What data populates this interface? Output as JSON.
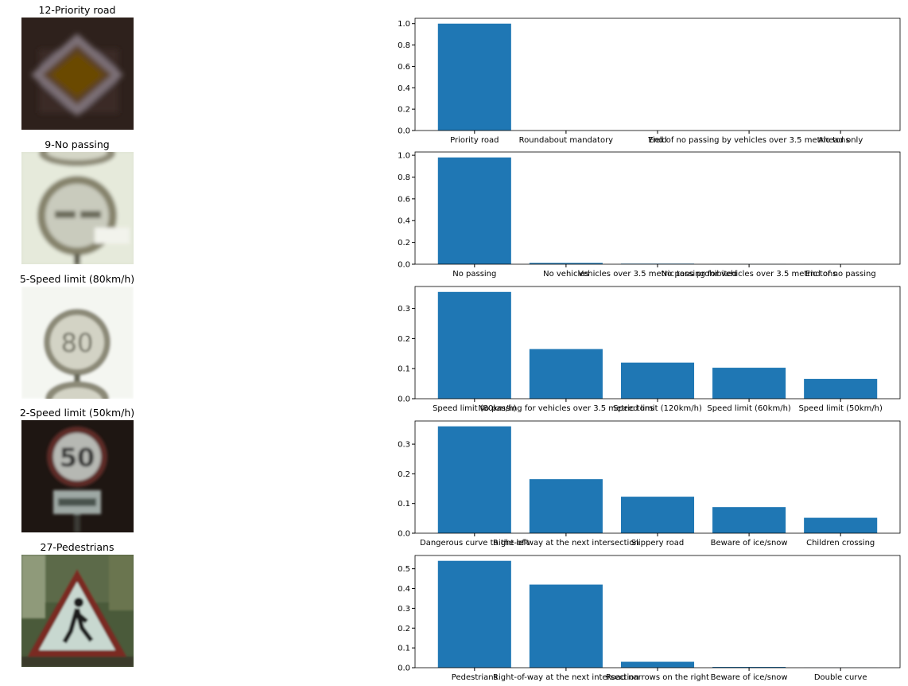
{
  "panels": [
    {
      "image_title": "12-Priority road",
      "sign_icon": "priority-road-sign-icon"
    },
    {
      "image_title": "9-No passing",
      "sign_icon": "no-passing-sign-icon"
    },
    {
      "image_title": "5-Speed limit (80km/h)",
      "sign_icon": "speed-limit-80-sign-icon",
      "sign_text": "80"
    },
    {
      "image_title": "2-Speed limit (50km/h)",
      "sign_icon": "speed-limit-50-sign-icon",
      "sign_text": "50"
    },
    {
      "image_title": "27-Pedestrians",
      "sign_icon": "pedestrians-sign-icon"
    }
  ],
  "chart_data": [
    {
      "type": "bar",
      "categories": [
        "Priority road",
        "Roundabout mandatory",
        "Yield",
        "End of no passing by vehicles over 3.5 metric tons",
        "Ahead only"
      ],
      "values": [
        1.0,
        0.0002,
        0.0001,
        0.0001,
        0.0001
      ],
      "yticks": [
        "0.0",
        "0.2",
        "0.4",
        "0.6",
        "0.8",
        "1.0"
      ],
      "ylim": [
        0,
        1.05
      ],
      "bar_color": "#1f77b4"
    },
    {
      "type": "bar",
      "categories": [
        "No passing",
        "No vehicles",
        "Vehicles over 3.5 metric tons prohibited",
        "No passing for vehicles over 3.5 metric tons",
        "End of no passing"
      ],
      "values": [
        0.98,
        0.012,
        0.005,
        0.001,
        0.0005
      ],
      "yticks": [
        "0.0",
        "0.2",
        "0.4",
        "0.6",
        "0.8",
        "1.0"
      ],
      "ylim": [
        0,
        1.03
      ],
      "bar_color": "#1f77b4"
    },
    {
      "type": "bar",
      "categories": [
        "Speed limit (80km/h)",
        "No passing for vehicles over 3.5 metric tons",
        "Speed limit (120km/h)",
        "Speed limit (60km/h)",
        "Speed limit (50km/h)"
      ],
      "values": [
        0.355,
        0.165,
        0.12,
        0.103,
        0.066
      ],
      "yticks": [
        "0.0",
        "0.1",
        "0.2",
        "0.3"
      ],
      "ylim": [
        0,
        0.373
      ],
      "bar_color": "#1f77b4"
    },
    {
      "type": "bar",
      "categories": [
        "Dangerous curve to the left",
        "Right-of-way at the next intersection",
        "Slippery road",
        "Beware of ice/snow",
        "Children crossing"
      ],
      "values": [
        0.36,
        0.182,
        0.123,
        0.088,
        0.052
      ],
      "yticks": [
        "0.0",
        "0.1",
        "0.2",
        "0.3"
      ],
      "ylim": [
        0,
        0.378
      ],
      "bar_color": "#1f77b4"
    },
    {
      "type": "bar",
      "categories": [
        "Pedestrians",
        "Right-of-way at the next intersection",
        "Road narrows on the right",
        "Beware of ice/snow",
        "Double curve"
      ],
      "values": [
        0.54,
        0.42,
        0.03,
        0.004,
        0.0005
      ],
      "yticks": [
        "0.0",
        "0.1",
        "0.2",
        "0.3",
        "0.4",
        "0.5"
      ],
      "ylim": [
        0,
        0.567
      ],
      "bar_color": "#1f77b4"
    }
  ]
}
